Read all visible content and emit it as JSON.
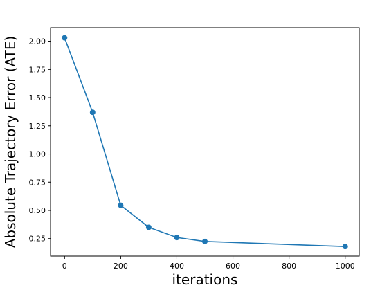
{
  "chart_data": {
    "type": "line",
    "xlabel": "iterations",
    "ylabel": "Absolute Trajectory Error (ATE)",
    "xlim": [
      -50,
      1050
    ],
    "ylim": [
      0.095,
      2.12
    ],
    "x_ticks": [
      0,
      200,
      400,
      600,
      800,
      1000
    ],
    "x_tick_labels": [
      "0",
      "200",
      "400",
      "600",
      "800",
      "1000"
    ],
    "y_ticks": [
      0.25,
      0.5,
      0.75,
      1.0,
      1.25,
      1.5,
      1.75,
      2.0
    ],
    "y_tick_labels": [
      "0.25",
      "0.50",
      "0.75",
      "1.00",
      "1.25",
      "1.50",
      "1.75",
      "2.00"
    ],
    "grid": false,
    "series": [
      {
        "color": "#1f77b4",
        "marker": "circle",
        "x": [
          0,
          100,
          200,
          300,
          400,
          500,
          1000
        ],
        "y": [
          2.03,
          1.37,
          0.545,
          0.35,
          0.26,
          0.225,
          0.18
        ]
      }
    ]
  }
}
